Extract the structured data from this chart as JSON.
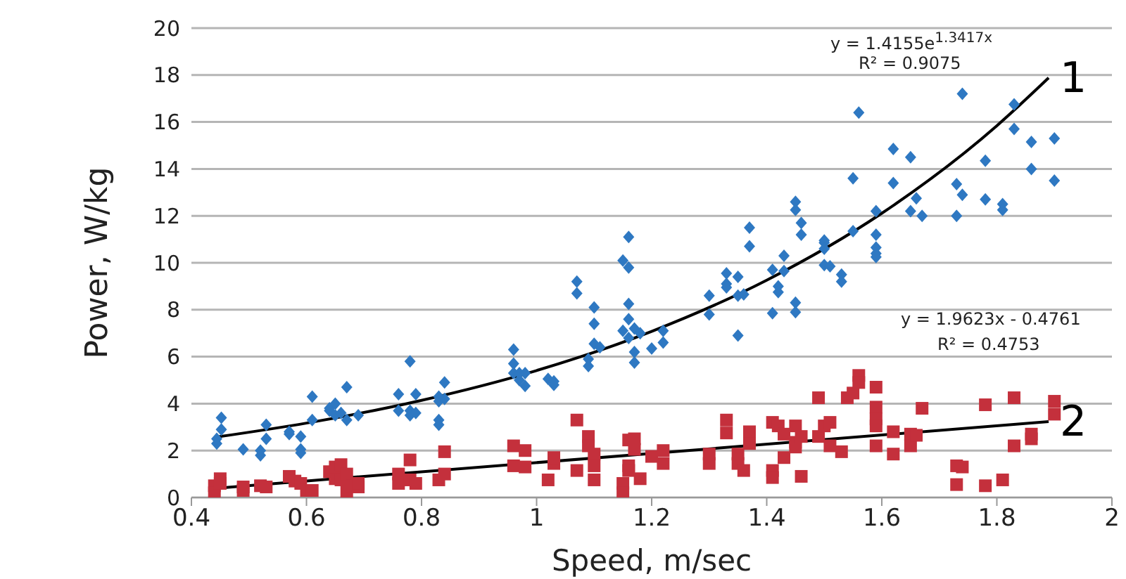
{
  "chart_data": {
    "type": "scatter",
    "xlabel": "Speed, m/sec",
    "ylabel": "Power, W/kg",
    "xlim": [
      0.4,
      2
    ],
    "xticks": [
      0.4,
      0.6,
      0.8,
      1,
      1.2,
      1.4,
      1.6,
      1.8,
      2
    ],
    "ylim": [
      0,
      20
    ],
    "yticks": [
      0,
      2,
      4,
      6,
      8,
      10,
      12,
      14,
      16,
      18,
      20
    ],
    "grid": "y",
    "legend": false,
    "annotations": [
      "y = 1.4155e$^{1.3417x}$",
      "R² = 0.9075",
      "y = 1.9623x - 0.4761",
      "R² = 0.4753"
    ],
    "series": [
      {
        "marker": "diamond",
        "color": "#2e78c2",
        "x": [
          0.444,
          0.444,
          0.452,
          0.452,
          0.49,
          0.52,
          0.52,
          0.53,
          0.53,
          0.57,
          0.57,
          0.59,
          0.59,
          0.59,
          0.61,
          0.61,
          0.64,
          0.64,
          0.65,
          0.65,
          0.66,
          0.67,
          0.67,
          0.69,
          0.76,
          0.76,
          0.78,
          0.78,
          0.78,
          0.79,
          0.79,
          0.83,
          0.83,
          0.83,
          0.83,
          0.84,
          0.84,
          0.96,
          0.96,
          0.96,
          0.97,
          0.97,
          0.98,
          0.98,
          1.02,
          1.03,
          1.03,
          1.07,
          1.07,
          1.09,
          1.09,
          1.1,
          1.1,
          1.1,
          1.11,
          1.15,
          1.15,
          1.16,
          1.16,
          1.16,
          1.16,
          1.16,
          1.17,
          1.18,
          1.17,
          1.17,
          1.2,
          1.22,
          1.22,
          1.3,
          1.3,
          1.33,
          1.33,
          1.33,
          1.35,
          1.35,
          1.36,
          1.35,
          1.37,
          1.37,
          1.41,
          1.41,
          1.42,
          1.42,
          1.43,
          1.43,
          1.45,
          1.45,
          1.45,
          1.45,
          1.46,
          1.46,
          1.5,
          1.5,
          1.5,
          1.5,
          1.51,
          1.53,
          1.53,
          1.55,
          1.55,
          1.56,
          1.59,
          1.59,
          1.59,
          1.59,
          1.59,
          1.62,
          1.62,
          1.65,
          1.65,
          1.66,
          1.67,
          1.73,
          1.73,
          1.74,
          1.74,
          1.78,
          1.78,
          1.81,
          1.81,
          1.83,
          1.83,
          1.86,
          1.86,
          1.9,
          1.9
        ],
        "values": [
          2.3,
          2.5,
          3.4,
          2.9,
          2.05,
          1.8,
          2.0,
          3.1,
          2.5,
          2.8,
          2.7,
          2.6,
          2.05,
          1.9,
          4.3,
          3.3,
          3.7,
          3.8,
          4.0,
          3.5,
          3.6,
          4.7,
          3.3,
          3.5,
          4.4,
          3.7,
          5.8,
          3.7,
          3.5,
          4.4,
          3.6,
          4.3,
          3.3,
          3.1,
          4.1,
          4.9,
          4.2,
          6.3,
          5.7,
          5.3,
          5.0,
          5.3,
          4.75,
          5.3,
          5.05,
          4.95,
          4.8,
          9.2,
          8.7,
          5.9,
          5.6,
          8.1,
          7.4,
          6.55,
          6.4,
          10.1,
          7.1,
          11.1,
          9.8,
          8.25,
          7.6,
          6.8,
          7.2,
          7.0,
          6.2,
          5.75,
          6.35,
          7.1,
          6.6,
          8.6,
          7.8,
          9.55,
          9.1,
          8.95,
          9.4,
          8.6,
          8.65,
          6.9,
          11.5,
          10.7,
          9.7,
          7.85,
          9.0,
          8.75,
          10.3,
          9.65,
          8.3,
          7.9,
          12.6,
          12.25,
          11.7,
          11.2,
          10.95,
          10.85,
          10.6,
          9.9,
          9.85,
          9.5,
          9.2,
          13.6,
          11.35,
          16.4,
          12.2,
          11.2,
          10.65,
          10.4,
          10.25,
          14.85,
          13.4,
          14.5,
          12.2,
          12.75,
          12.0,
          13.35,
          12.0,
          17.2,
          12.9,
          14.35,
          12.7,
          12.5,
          12.25,
          16.75,
          15.7,
          15.15,
          14.0,
          15.3,
          13.5
        ]
      },
      {
        "marker": "square",
        "color": "#c4303c",
        "x": [
          0.44,
          0.44,
          0.45,
          0.45,
          0.49,
          0.49,
          0.52,
          0.53,
          0.57,
          0.58,
          0.59,
          0.6,
          0.61,
          0.64,
          0.65,
          0.65,
          0.66,
          0.66,
          0.67,
          0.67,
          0.68,
          0.69,
          0.69,
          0.76,
          0.76,
          0.78,
          0.78,
          0.79,
          0.83,
          0.84,
          0.84,
          0.96,
          0.96,
          0.98,
          0.98,
          1.02,
          1.03,
          1.03,
          1.07,
          1.07,
          1.09,
          1.09,
          1.1,
          1.1,
          1.1,
          1.15,
          1.15,
          1.16,
          1.16,
          1.16,
          1.17,
          1.17,
          1.18,
          1.2,
          1.22,
          1.22,
          1.3,
          1.3,
          1.33,
          1.33,
          1.35,
          1.35,
          1.36,
          1.37,
          1.37,
          1.41,
          1.41,
          1.41,
          1.42,
          1.43,
          1.43,
          1.45,
          1.45,
          1.45,
          1.46,
          1.46,
          1.49,
          1.49,
          1.5,
          1.51,
          1.51,
          1.53,
          1.54,
          1.55,
          1.56,
          1.56,
          1.59,
          1.59,
          1.59,
          1.59,
          1.59,
          1.62,
          1.62,
          1.65,
          1.65,
          1.66,
          1.67,
          1.73,
          1.74,
          1.73,
          1.78,
          1.78,
          1.81,
          1.83,
          1.83,
          1.86,
          1.86,
          1.9,
          1.9
        ],
        "values": [
          0.5,
          0.2,
          0.8,
          0.6,
          0.3,
          0.45,
          0.5,
          0.45,
          0.9,
          0.7,
          0.6,
          0.3,
          0.3,
          1.1,
          0.8,
          1.3,
          1.4,
          0.75,
          1.0,
          0.25,
          0.5,
          0.45,
          0.6,
          1.0,
          0.6,
          1.6,
          0.75,
          0.6,
          0.75,
          1.0,
          1.95,
          2.2,
          1.35,
          2.0,
          1.3,
          0.75,
          1.45,
          1.7,
          3.3,
          1.15,
          2.6,
          2.2,
          1.85,
          1.35,
          0.75,
          0.6,
          0.2,
          2.45,
          1.35,
          1.15,
          2.5,
          2.05,
          0.8,
          1.75,
          2.0,
          1.45,
          1.85,
          1.45,
          3.3,
          2.75,
          1.85,
          1.45,
          1.15,
          2.8,
          2.3,
          3.2,
          1.15,
          0.85,
          3.05,
          2.7,
          1.7,
          2.35,
          3.05,
          2.15,
          0.9,
          2.6,
          4.25,
          2.6,
          3.05,
          2.2,
          3.2,
          1.95,
          4.25,
          4.45,
          5.2,
          4.9,
          4.7,
          3.85,
          3.35,
          3.05,
          2.2,
          2.8,
          1.85,
          2.7,
          2.2,
          2.65,
          3.8,
          0.55,
          1.3,
          1.35,
          3.95,
          0.5,
          0.75,
          4.25,
          2.2,
          2.7,
          2.5,
          4.1,
          3.55
        ]
      },
      {
        "type": "line",
        "name": "1",
        "color": "#000000",
        "line_style": "solid",
        "marker": "none",
        "x": [
          0.445,
          0.6,
          0.8,
          1.0,
          1.2,
          1.4,
          1.6,
          1.8,
          1.89
        ],
        "values": [
          2.58,
          3.17,
          4.14,
          5.41,
          7.08,
          9.26,
          12.11,
          15.84,
          17.88
        ]
      },
      {
        "type": "line",
        "name": "2",
        "color": "#000000",
        "line_style": "solid",
        "marker": "none",
        "x": [
          0.445,
          1.89
        ],
        "values": [
          0.4,
          3.23
        ]
      }
    ]
  }
}
